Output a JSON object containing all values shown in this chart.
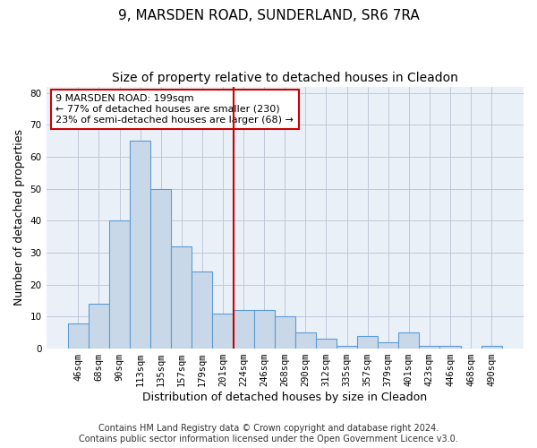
{
  "title_line1": "9, MARSDEN ROAD, SUNDERLAND, SR6 7RA",
  "title_line2": "Size of property relative to detached houses in Cleadon",
  "xlabel": "Distribution of detached houses by size in Cleadon",
  "ylabel": "Number of detached properties",
  "categories": [
    "46sqm",
    "68sqm",
    "90sqm",
    "113sqm",
    "135sqm",
    "157sqm",
    "179sqm",
    "201sqm",
    "224sqm",
    "246sqm",
    "268sqm",
    "290sqm",
    "312sqm",
    "335sqm",
    "357sqm",
    "379sqm",
    "401sqm",
    "423sqm",
    "446sqm",
    "468sqm",
    "490sqm"
  ],
  "values": [
    8,
    14,
    40,
    65,
    50,
    32,
    24,
    11,
    12,
    12,
    10,
    5,
    3,
    1,
    4,
    2,
    5,
    1,
    1,
    0,
    1
  ],
  "bar_color": "#c8d8e8",
  "bar_edgecolor": "#5b9bd5",
  "vline_x": 7.5,
  "vline_color": "#cc0000",
  "annotation_text": "9 MARSDEN ROAD: 199sqm\n← 77% of detached houses are smaller (230)\n23% of semi-detached houses are larger (68) →",
  "annotation_box_color": "#ffffff",
  "annotation_box_edgecolor": "#cc0000",
  "ylim": [
    0,
    82
  ],
  "yticks": [
    0,
    10,
    20,
    30,
    40,
    50,
    60,
    70,
    80
  ],
  "grid_color": "#c0c8d8",
  "background_color": "#eaf0f8",
  "footer_line1": "Contains HM Land Registry data © Crown copyright and database right 2024.",
  "footer_line2": "Contains public sector information licensed under the Open Government Licence v3.0.",
  "title_fontsize": 11,
  "subtitle_fontsize": 10,
  "axis_label_fontsize": 9,
  "tick_fontsize": 7.5,
  "footer_fontsize": 7,
  "annot_fontsize": 8
}
